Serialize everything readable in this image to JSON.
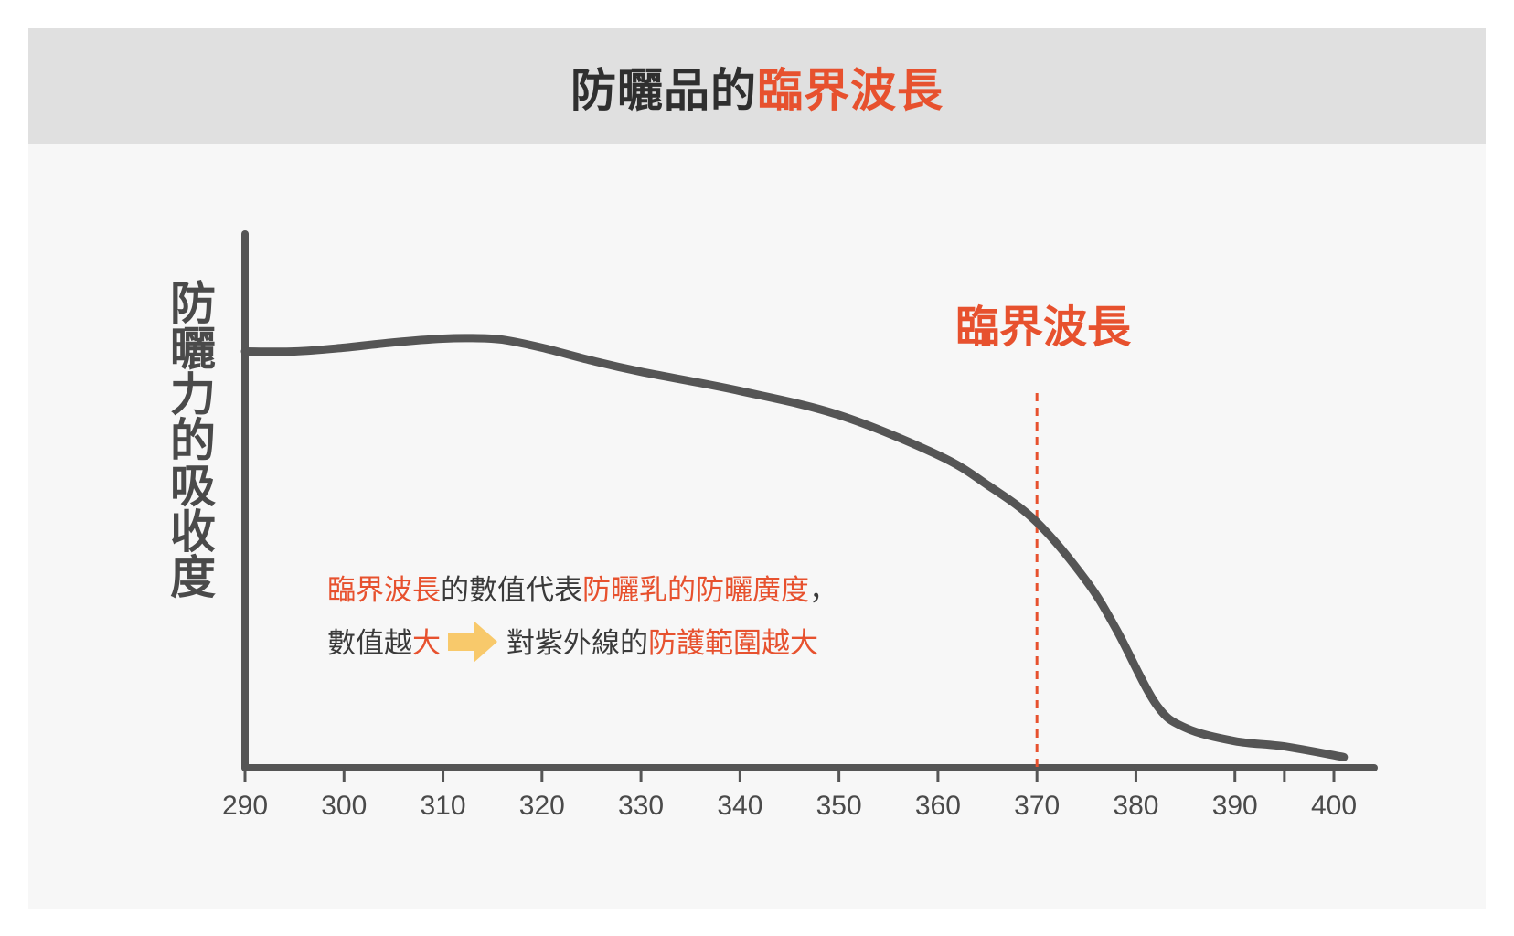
{
  "title": {
    "main": "防曬品的",
    "highlight": "臨界波長"
  },
  "colors": {
    "accent": "#e7512e",
    "curve": "#555555",
    "arrow": "#f8c96b",
    "title_bg": "#e0e0e0",
    "panel_bg": "#f7f7f7"
  },
  "annotation": {
    "critical_label": "臨界波長",
    "line1": {
      "a": "臨界波長",
      "b": "的數值代表",
      "c": "防曬乳的防曬廣度",
      "d": "，"
    },
    "line2": {
      "a": "數值越",
      "b": "大",
      "c": "對紫外線的",
      "d": "防護範圍越大"
    },
    "arrow_icon": "right-arrow-icon"
  },
  "chart_data": {
    "type": "line",
    "title": "防曬品的臨界波長",
    "xlabel": "",
    "ylabel": "防曬力的吸收度",
    "xlim": [
      290,
      400
    ],
    "x_ticks": [
      290,
      300,
      310,
      320,
      330,
      340,
      350,
      360,
      370,
      380,
      390,
      400
    ],
    "y_ticks_shown": false,
    "grid": false,
    "reference_line": {
      "x": 370,
      "label": "臨界波長",
      "style": "dashed"
    },
    "series": [
      {
        "x": [
          290,
          295,
          300,
          305,
          310,
          313,
          316,
          320,
          325,
          330,
          340,
          350,
          360,
          365,
          370,
          375,
          378,
          382,
          385,
          390,
          395,
          401
        ],
        "y": [
          0.78,
          0.78,
          0.787,
          0.797,
          0.804,
          0.805,
          0.802,
          0.787,
          0.763,
          0.742,
          0.706,
          0.661,
          0.586,
          0.53,
          0.46,
          0.35,
          0.26,
          0.12,
          0.075,
          0.05,
          0.04,
          0.02
        ]
      }
    ]
  }
}
